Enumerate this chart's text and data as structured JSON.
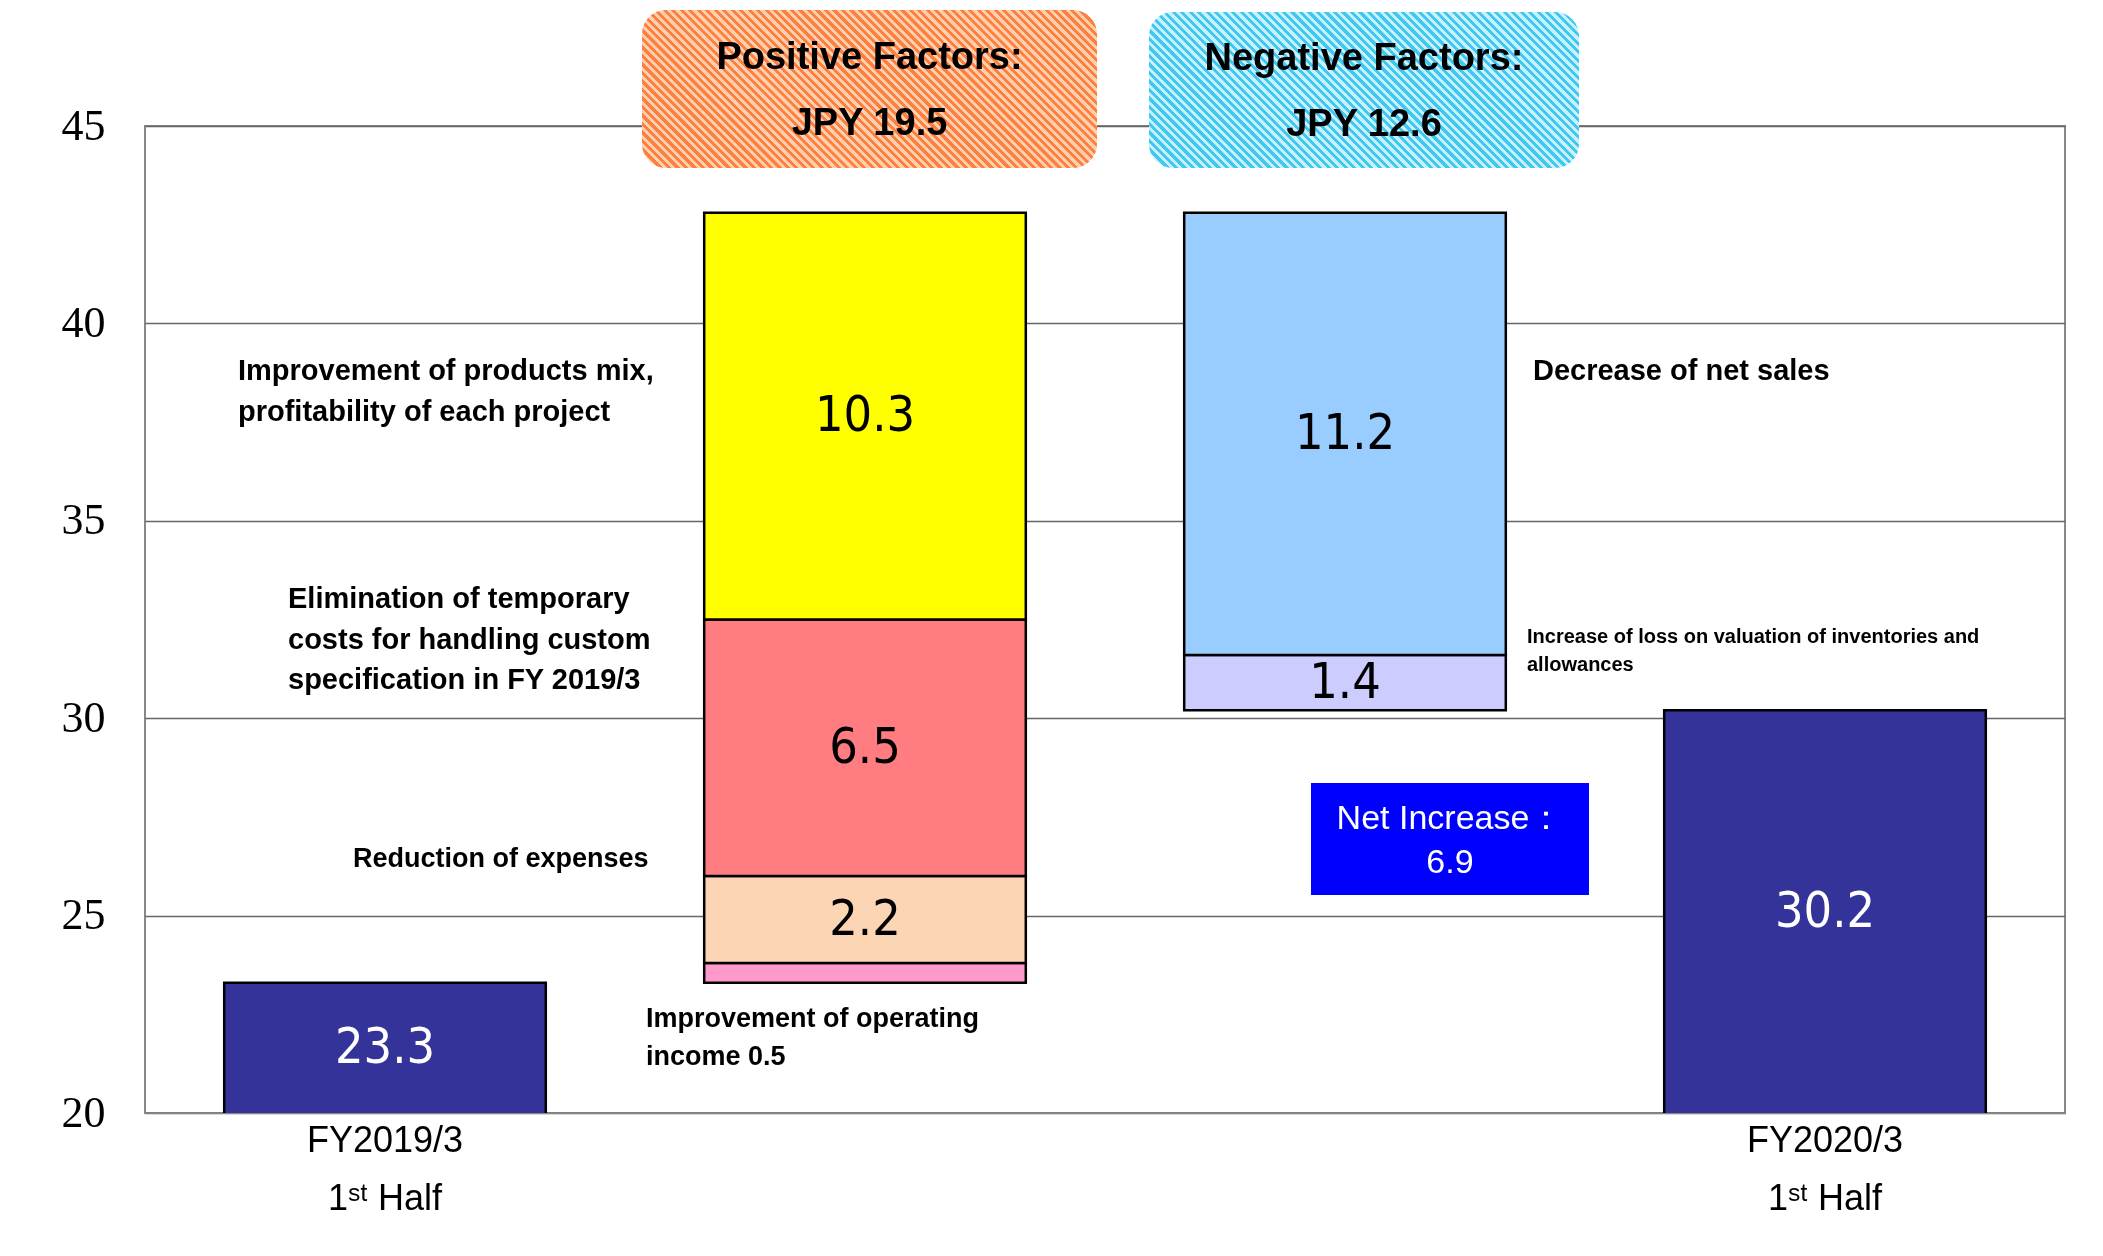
{
  "chart_data": {
    "type": "bar",
    "categories": [
      "FY2019/3\n1ˢᵗ Half",
      null,
      null,
      "FY2020/3\n1ˢᵗ Half"
    ],
    "series": [
      {
        "colors": [
          "#333399",
          "#ff99cc",
          "#ccccff",
          "#333399"
        ],
        "base": [
          null,
          23.3,
          30.2,
          null
        ],
        "values": [
          23.3,
          0.5,
          1.4,
          30.2
        ],
        "value_labels": [
          "23.3",
          null,
          "1.4",
          "30.2"
        ]
      },
      {
        "colors": [
          null,
          "#fcd5b4",
          "#99ccff",
          null
        ],
        "base": [
          null,
          23.8,
          31.6,
          null
        ],
        "values": [
          null,
          2.2,
          11.2,
          null
        ],
        "value_labels": [
          null,
          "2.2",
          "11.2",
          null
        ]
      },
      {
        "colors": [
          null,
          "#ff7c80",
          null,
          null
        ],
        "base": [
          null,
          26.0,
          null,
          null
        ],
        "values": [
          null,
          6.5,
          null,
          null
        ],
        "value_labels": [
          null,
          "6.5",
          null,
          null
        ]
      },
      {
        "colors": [
          null,
          "#ffff00",
          null,
          null
        ],
        "base": [
          null,
          32.5,
          null,
          null
        ],
        "values": [
          null,
          10.3,
          null,
          null
        ],
        "value_labels": [
          null,
          "10.3",
          null,
          null
        ]
      }
    ],
    "ylim": [
      20,
      45
    ],
    "yticks": [
      20,
      25,
      30,
      35,
      40,
      45
    ],
    "grid": "y",
    "annotations": [
      "Positive Factors:\nJPY 19.5",
      "Negative Factors:\nJPY 12.6",
      "Improvement of products mix,\nprofitability of each project",
      "Elimination of temporary\ncosts for handling custom\nspecification in FY 2019/3",
      "Reduction of expenses",
      "Improvement of operating\nincome 0.5",
      "Decrease of net sales",
      "Increase of loss on valuation of inventories and\nallowances",
      "Net Increase：\n6.9"
    ]
  }
}
